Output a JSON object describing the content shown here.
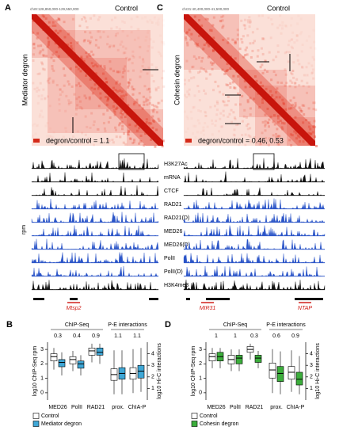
{
  "panels": [
    {
      "label": "A",
      "region": "chr8:128,850,000-129,550,000",
      "title": "Control",
      "side_label": "Mediator degron",
      "ratio": "degron/control = 1.1",
      "genes": [
        "Mtsp2"
      ]
    },
    {
      "label": "C",
      "region": "chr21:40,400,000-41,500,000",
      "title": "Control",
      "side_label": "Cohesin degron",
      "ratio": "degron/control = 0.46, 0.53",
      "genes": [
        "MIR31",
        "NTAP"
      ]
    }
  ],
  "tracks": {
    "unit": "rpm",
    "names": [
      "H3K27Ac",
      "mRNA",
      "CTCF",
      "RAD21",
      "RAD21(D)",
      "MED26",
      "MED26(D)",
      "PolII",
      "PolII(D)",
      "H3K4me3"
    ],
    "colors": [
      "#111111",
      "#111111",
      "#111111",
      "#2b55c8",
      "#2b55c8",
      "#2b55c8",
      "#2b55c8",
      "#2b55c8",
      "#2b55c8",
      "#111111"
    ]
  },
  "chart_data": [
    {
      "type": "box",
      "label": "B",
      "group_labels": [
        "ChIP-Seq",
        "P-E interactions"
      ],
      "ylabel": "log10 ChIP-Seq rpm",
      "y2label": "log10 Hi-C interactions",
      "categories": [
        "MED26",
        "PolII",
        "RAD21",
        "prox.",
        "ChIA-P"
      ],
      "axes": [
        "y",
        "y",
        "y",
        "y2",
        "y2"
      ],
      "annotations": [
        0.3,
        0.4,
        0.9,
        1.1,
        1.1
      ],
      "ylim": [
        -0.5,
        3.5
      ],
      "yticks": [
        0,
        1,
        2,
        3
      ],
      "y2lim": [
        0,
        5
      ],
      "y2ticks": [
        1,
        2,
        3,
        4
      ],
      "series": [
        {
          "name": "Control",
          "color": "#ffffff",
          "values": [
            [
              1.6,
              2.2,
              2.5,
              2.7,
              3.1
            ],
            [
              1.5,
              2.0,
              2.3,
              2.5,
              2.9
            ],
            [
              2.1,
              2.6,
              2.9,
              3.1,
              3.4
            ],
            [
              0.5,
              1.7,
              2.2,
              2.7,
              4.3
            ],
            [
              0.6,
              1.8,
              2.3,
              2.8,
              4.4
            ]
          ]
        },
        {
          "name": "Mediator degron",
          "color": "#3fa7d6",
          "values": [
            [
              1.2,
              1.8,
              2.1,
              2.3,
              2.8
            ],
            [
              1.2,
              1.7,
              2.0,
              2.2,
              2.6
            ],
            [
              2.0,
              2.6,
              2.8,
              3.1,
              3.4
            ],
            [
              0.5,
              1.8,
              2.3,
              2.8,
              4.3
            ],
            [
              0.7,
              1.9,
              2.5,
              3.0,
              4.5
            ]
          ]
        }
      ]
    },
    {
      "type": "box",
      "label": "D",
      "group_labels": [
        "ChIP-Seq",
        "P-E interactions"
      ],
      "ylabel": "log10 ChIP-Seq rpm",
      "y2label": "log10 Hi-C interactions",
      "categories": [
        "MED26",
        "PolII",
        "RAD21",
        "prox.",
        "ChIA-P"
      ],
      "axes": [
        "y",
        "y",
        "y",
        "y2",
        "y2"
      ],
      "annotations": [
        1.0,
        1.0,
        0.3,
        0.6,
        0.9
      ],
      "ylim": [
        -0.5,
        3.5
      ],
      "yticks": [
        0,
        1,
        2,
        3
      ],
      "y2lim": [
        0,
        5
      ],
      "y2ticks": [
        1,
        2,
        3,
        4
      ],
      "series": [
        {
          "name": "Control",
          "color": "#ffffff",
          "values": [
            [
              1.7,
              2.2,
              2.5,
              2.7,
              3.1
            ],
            [
              1.5,
              2.0,
              2.3,
              2.6,
              3.0
            ],
            [
              2.3,
              2.8,
              3.0,
              3.2,
              3.4
            ],
            [
              0.6,
              1.9,
              2.6,
              3.2,
              4.4
            ],
            [
              0.7,
              1.8,
              2.4,
              2.9,
              4.3
            ]
          ]
        },
        {
          "name": "Cohesin degron",
          "color": "#3cae3c",
          "values": [
            [
              1.7,
              2.2,
              2.5,
              2.8,
              3.1
            ],
            [
              1.5,
              2.0,
              2.4,
              2.6,
              3.0
            ],
            [
              1.7,
              2.1,
              2.4,
              2.6,
              2.9
            ],
            [
              0.5,
              1.6,
              2.3,
              2.9,
              4.2
            ],
            [
              0.5,
              1.3,
              1.8,
              2.4,
              3.8
            ]
          ]
        }
      ]
    }
  ]
}
